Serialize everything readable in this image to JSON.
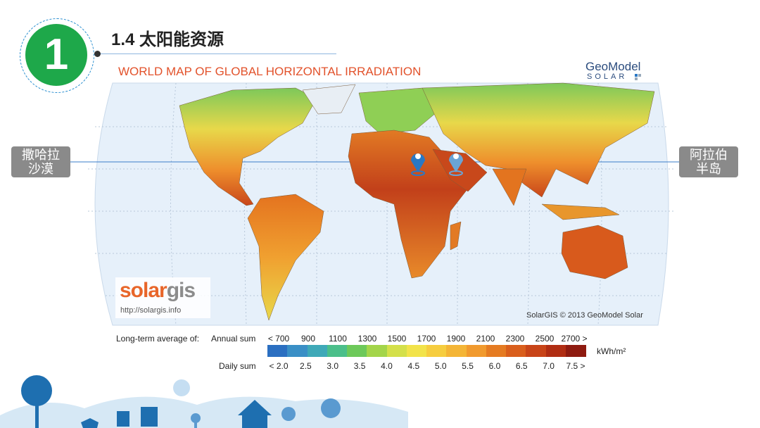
{
  "header": {
    "number": "1",
    "title": "1.4 太阳能资源"
  },
  "map": {
    "title": "WORLD MAP OF GLOBAL HORIZONTAL IRRADIATION",
    "brand_top": "GeoModel",
    "brand_bottom": "SOLAR",
    "logo_part1": "solar",
    "logo_part2": "gis",
    "url": "http://solargis.info",
    "copyright": "SolarGIS © 2013 GeoModel Solar"
  },
  "callouts": [
    {
      "lines": [
        "撒哈拉",
        "沙漠"
      ]
    },
    {
      "lines": [
        "阿拉伯",
        "半岛"
      ]
    }
  ],
  "legend": {
    "caption": "Long-term average of:",
    "annual_label": "Annual sum",
    "annual_ticks": [
      "< 700",
      "900",
      "1100",
      "1300",
      "1500",
      "1700",
      "1900",
      "2100",
      "2300",
      "2500",
      "2700 >"
    ],
    "daily_label": "Daily sum",
    "daily_ticks": [
      "< 2.0",
      "2.5",
      "3.0",
      "3.5",
      "4.0",
      "4.5",
      "5.0",
      "5.5",
      "6.0",
      "6.5",
      "7.0",
      "7.5 >"
    ],
    "unit": "kWh/m²",
    "colors": [
      "#2b6fc1",
      "#3a8fc6",
      "#3fa9b8",
      "#4bbf8a",
      "#6dc95a",
      "#a3d54a",
      "#d4e04a",
      "#f2e34a",
      "#f6cd3f",
      "#f4b536",
      "#f19a2e",
      "#e57b22",
      "#d95e1c",
      "#c84418",
      "#b02d13",
      "#8e1b10"
    ]
  }
}
